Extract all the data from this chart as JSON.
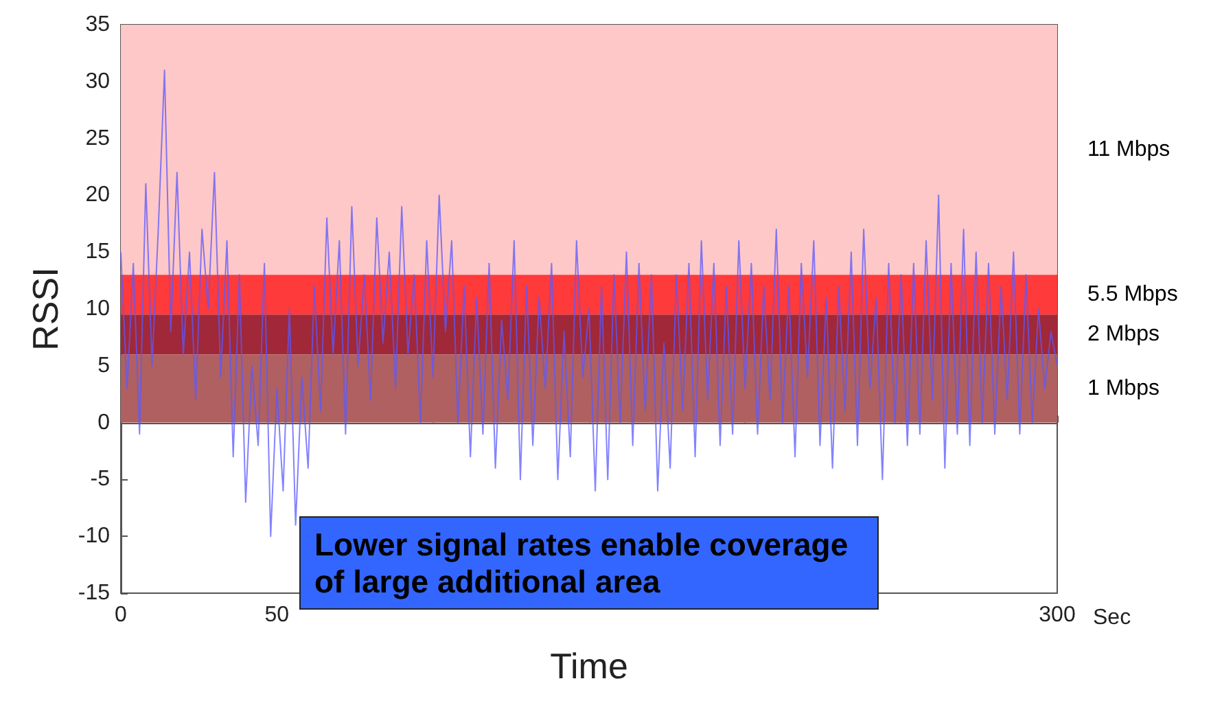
{
  "chart_data": {
    "type": "line",
    "xlabel": "Time",
    "ylabel": "RSSI",
    "annotations": [
      "Sec",
      "Lower signal rates enable coverage of large additional area"
    ],
    "x": [
      0,
      2,
      4,
      6,
      8,
      10,
      12,
      14,
      16,
      18,
      20,
      22,
      24,
      26,
      28,
      30,
      32,
      34,
      36,
      38,
      40,
      42,
      44,
      46,
      48,
      50,
      52,
      54,
      56,
      58,
      60,
      62,
      64,
      66,
      68,
      70,
      72,
      74,
      76,
      78,
      80,
      82,
      84,
      86,
      88,
      90,
      92,
      94,
      96,
      98,
      100,
      102,
      104,
      106,
      108,
      110,
      112,
      114,
      116,
      118,
      120,
      122,
      124,
      126,
      128,
      130,
      132,
      134,
      136,
      138,
      140,
      142,
      144,
      146,
      148,
      150,
      152,
      154,
      156,
      158,
      160,
      162,
      164,
      166,
      168,
      170,
      172,
      174,
      176,
      178,
      180,
      182,
      184,
      186,
      188,
      190,
      192,
      194,
      196,
      198,
      200,
      202,
      204,
      206,
      208,
      210,
      212,
      214,
      216,
      218,
      220,
      222,
      224,
      226,
      228,
      230,
      232,
      234,
      236,
      238,
      240,
      242,
      244,
      246,
      248,
      250,
      252,
      254,
      256,
      258,
      260,
      262,
      264,
      266,
      268,
      270,
      272,
      274,
      276,
      278,
      280,
      282,
      284,
      286,
      288,
      290,
      292,
      294,
      296,
      298,
      300
    ],
    "series": [
      {
        "color": "#5a5aff",
        "values": [
          15,
          3,
          14,
          -1,
          21,
          5,
          17,
          31,
          8,
          22,
          6,
          15,
          2,
          17,
          10,
          22,
          4,
          16,
          -3,
          13,
          -7,
          5,
          -2,
          14,
          -10,
          3,
          -6,
          10,
          -9,
          4,
          -4,
          12,
          1,
          18,
          6,
          16,
          -1,
          19,
          5,
          13,
          2,
          18,
          7,
          15,
          3,
          19,
          6,
          13,
          0,
          16,
          4,
          20,
          8,
          16,
          0,
          12,
          -3,
          11,
          -1,
          14,
          -4,
          9,
          2,
          16,
          -5,
          12,
          -2,
          11,
          3,
          14,
          -5,
          8,
          -3,
          16,
          4,
          10,
          -6,
          12,
          -5,
          13,
          0,
          15,
          -2,
          14,
          1,
          13,
          -6,
          7,
          -4,
          13,
          1,
          14,
          -3,
          16,
          2,
          14,
          -2,
          12,
          -1,
          16,
          3,
          14,
          -1,
          12,
          2,
          17,
          0,
          12,
          -3,
          14,
          4,
          16,
          -2,
          11,
          -4,
          12,
          1,
          15,
          -2,
          17,
          3,
          11,
          -5,
          14,
          0,
          13,
          -2,
          14,
          -1,
          16,
          2,
          20,
          -4,
          14,
          -1,
          17,
          -2,
          15,
          0,
          14,
          -1,
          12,
          2,
          15,
          -1,
          13,
          0,
          10,
          3,
          8,
          5
        ]
      }
    ],
    "xlim": [
      0,
      300
    ],
    "xticks": [
      0,
      50,
      {
        "value": 100,
        "label": null
      },
      {
        "value": 150,
        "label": null
      },
      {
        "value": 200,
        "label": null
      },
      {
        "value": 250,
        "label": null
      },
      300
    ],
    "ylim": [
      -15,
      35
    ],
    "yticks": [
      -15,
      -10,
      -5,
      0,
      5,
      10,
      15,
      20,
      25,
      30,
      35
    ],
    "bands": [
      {
        "axis": "y",
        "from": 13,
        "to": 35,
        "label": "11 Mbps",
        "color": "#ffc8c8"
      },
      {
        "axis": "y",
        "from": 9.5,
        "to": 13,
        "label": "5.5 Mbps",
        "color": "#ff3a3a"
      },
      {
        "axis": "y",
        "from": 6,
        "to": 9.5,
        "label": "2 Mbps",
        "color": "#a02838"
      },
      {
        "axis": "y",
        "from": 0,
        "to": 6,
        "label": "1 Mbps",
        "color": "#b06060"
      }
    ],
    "marker": "none",
    "line_style": "solid"
  }
}
